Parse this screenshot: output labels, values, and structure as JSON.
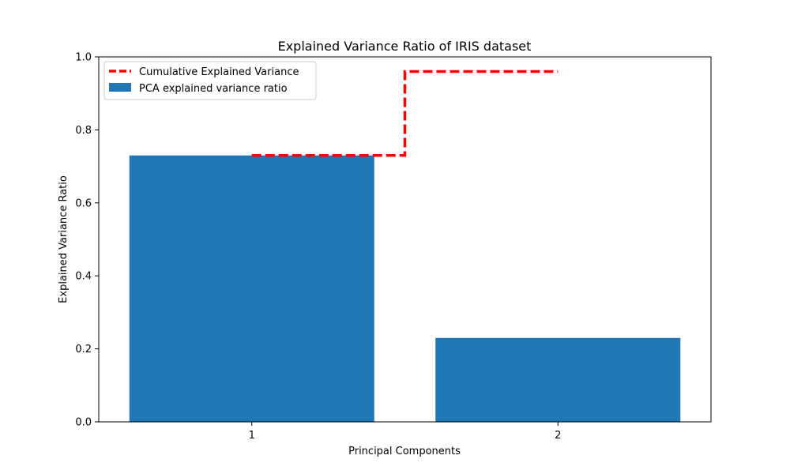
{
  "chart_data": {
    "type": "bar",
    "title": "Explained Variance Ratio of IRIS dataset",
    "xlabel": "Principal Components",
    "ylabel": "Explained Variance Ratio",
    "categories": [
      "1",
      "2"
    ],
    "ylim": [
      0,
      1.0
    ],
    "yticks": [
      0.0,
      0.2,
      0.4,
      0.6,
      0.8,
      1.0
    ],
    "ytick_labels": [
      "0.0",
      "0.2",
      "0.4",
      "0.6",
      "0.8",
      "1.0"
    ],
    "grid": false,
    "legend_position": "top-left",
    "series": [
      {
        "name": "PCA explained variance ratio",
        "kind": "bar",
        "color": "#1f77b4",
        "values": [
          0.73,
          0.23
        ]
      },
      {
        "name": "Cumulative Explained Variance",
        "kind": "step",
        "style": "dashed",
        "color": "#ff0000",
        "values": [
          0.73,
          0.96
        ]
      }
    ]
  }
}
